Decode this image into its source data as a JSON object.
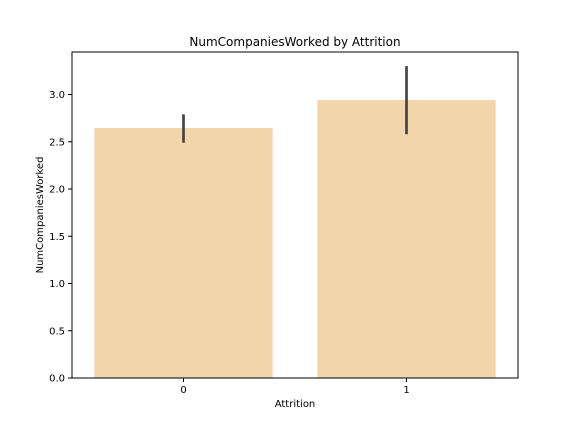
{
  "chart_data": {
    "type": "bar",
    "title": "NumCompaniesWorked by Attrition",
    "xlabel": "Attrition",
    "ylabel": "NumCompaniesWorked",
    "categories": [
      "0",
      "1"
    ],
    "values": [
      2.645,
      2.941
    ],
    "error_low": [
      2.49,
      2.58
    ],
    "error_high": [
      2.79,
      3.3
    ],
    "ylim": [
      0,
      3.45
    ],
    "yticks": [
      0.0,
      0.5,
      1.0,
      1.5,
      2.0,
      2.5,
      3.0
    ],
    "ytick_labels": [
      "0.0",
      "0.5",
      "1.0",
      "1.5",
      "2.0",
      "2.5",
      "3.0"
    ],
    "grid": false,
    "bar_color": "#f2d5aa",
    "error_color": "#444444"
  }
}
